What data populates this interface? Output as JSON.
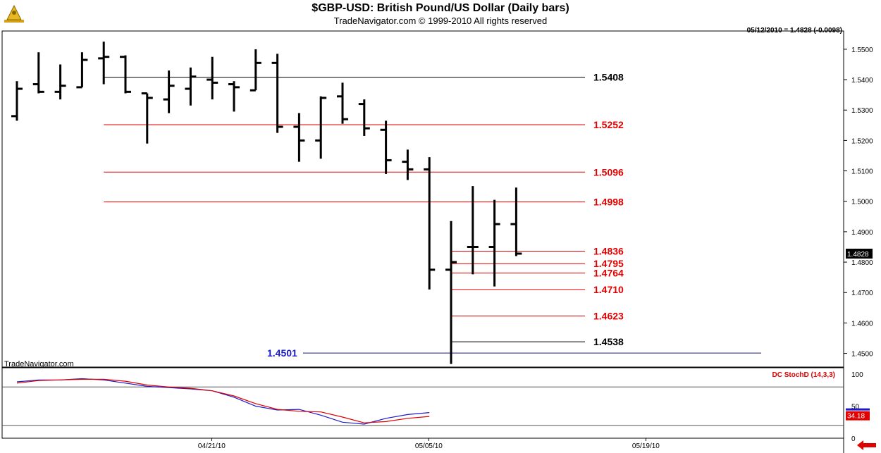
{
  "header": {
    "title": "$GBP-USD:  British Pound/US Dollar  (Daily bars)",
    "subtitle": "TradeNavigator.com © 1999-2010 All rights reserved",
    "readout": "05/12/2010 = 1.4828 (-0.0098)",
    "watermark": "TradeNavigator.com"
  },
  "colors": {
    "red": "#e00000",
    "blue": "#1a1acc",
    "black": "#000000",
    "green": "#00b000"
  },
  "chart_data": {
    "type": "ohlc",
    "title": "$GBP-USD:  British Pound/US Dollar  (Daily bars)",
    "price_ylim": [
      1.4455,
      1.556
    ],
    "price_ticks": [
      "1.5500",
      "1.5400",
      "1.5300",
      "1.5200",
      "1.5100",
      "1.5000",
      "1.4900",
      "1.4800",
      "1.4700",
      "1.4600",
      "1.4500"
    ],
    "last_price_label": "1.4828",
    "x_tick_labels": [
      {
        "label": "04/21/10",
        "bar": 8
      },
      {
        "label": "05/05/10",
        "bar": 18
      },
      {
        "label": "05/19/10",
        "bar": 28
      }
    ],
    "bars": [
      {
        "o": 1.528,
        "h": 1.5395,
        "l": 1.5265,
        "c": 1.537
      },
      {
        "o": 1.5385,
        "h": 1.549,
        "l": 1.5355,
        "c": 1.536
      },
      {
        "o": 1.536,
        "h": 1.545,
        "l": 1.5335,
        "c": 1.538
      },
      {
        "o": 1.5375,
        "h": 1.549,
        "l": 1.5375,
        "c": 1.5465
      },
      {
        "o": 1.547,
        "h": 1.5525,
        "l": 1.5385,
        "c": 1.5475
      },
      {
        "o": 1.5475,
        "h": 1.548,
        "l": 1.5355,
        "c": 1.536
      },
      {
        "o": 1.5355,
        "h": 1.5355,
        "l": 1.519,
        "c": 1.534
      },
      {
        "o": 1.5335,
        "h": 1.543,
        "l": 1.529,
        "c": 1.538
      },
      {
        "o": 1.537,
        "h": 1.544,
        "l": 1.5315,
        "c": 1.541
      },
      {
        "o": 1.54,
        "h": 1.5475,
        "l": 1.5335,
        "c": 1.539
      },
      {
        "o": 1.5385,
        "h": 1.5395,
        "l": 1.5295,
        "c": 1.5375
      },
      {
        "o": 1.5365,
        "h": 1.55,
        "l": 1.5365,
        "c": 1.5455
      },
      {
        "o": 1.5455,
        "h": 1.5485,
        "l": 1.5225,
        "c": 1.5245
      },
      {
        "o": 1.5245,
        "h": 1.529,
        "l": 1.513,
        "c": 1.52
      },
      {
        "o": 1.52,
        "h": 1.5345,
        "l": 1.514,
        "c": 1.534
      },
      {
        "o": 1.5345,
        "h": 1.539,
        "l": 1.5255,
        "c": 1.527
      },
      {
        "o": 1.532,
        "h": 1.5335,
        "l": 1.5215,
        "c": 1.524
      },
      {
        "o": 1.5235,
        "h": 1.5265,
        "l": 1.509,
        "c": 1.5135
      },
      {
        "o": 1.513,
        "h": 1.517,
        "l": 1.507,
        "c": 1.5105
      },
      {
        "o": 1.5105,
        "h": 1.5145,
        "l": 1.471,
        "c": 1.4775
      },
      {
        "o": 1.4775,
        "h": 1.4935,
        "l": 1.4465,
        "c": 1.48
      },
      {
        "o": 1.485,
        "h": 1.505,
        "l": 1.476,
        "c": 1.485
      },
      {
        "o": 1.485,
        "h": 1.5005,
        "l": 1.472,
        "c": 1.4925
      },
      {
        "o": 1.4925,
        "h": 1.5045,
        "l": 1.482,
        "c": 1.4828
      }
    ],
    "levels": [
      {
        "label": "1.5408",
        "value": 1.5408,
        "color": "black",
        "from_bar": 4
      },
      {
        "label": "1.5252",
        "value": 1.5252,
        "color": "red",
        "from_bar": 4
      },
      {
        "label": "1.5096",
        "value": 1.5096,
        "color": "red",
        "from_bar": 4
      },
      {
        "label": "1.4998",
        "value": 1.4998,
        "color": "red",
        "from_bar": 4
      },
      {
        "label": "1.4836",
        "value": 1.4836,
        "color": "red",
        "from_bar": 20
      },
      {
        "label": "1.4795",
        "value": 1.4795,
        "color": "red",
        "from_bar": 20
      },
      {
        "label": "1.4764",
        "value": 1.4764,
        "color": "red",
        "from_bar": 20
      },
      {
        "label": "1.4710",
        "value": 1.471,
        "color": "red",
        "from_bar": 20
      },
      {
        "label": "1.4623",
        "value": 1.4623,
        "color": "red",
        "from_bar": 20
      },
      {
        "label": "1.4538",
        "value": 1.4538,
        "color": "black",
        "from_bar": 20
      }
    ],
    "support": {
      "label": "1.4501",
      "value": 1.4501,
      "color": "blue"
    },
    "indicator": {
      "name": "DC StochD (14,3,3)",
      "ylim": [
        0,
        110
      ],
      "ticks": [
        "100",
        "50",
        "0"
      ],
      "reference_lines": [
        80,
        20
      ],
      "last_value_label": "34.18",
      "series": [
        {
          "color": "blue",
          "values": [
            88,
            91,
            91,
            93,
            91,
            86,
            81,
            79,
            77,
            74,
            64,
            50,
            44,
            45,
            36,
            25,
            22,
            31,
            37,
            40
          ]
        },
        {
          "color": "red",
          "values": [
            86,
            90,
            91,
            92,
            92,
            89,
            83,
            80,
            78,
            74,
            66,
            54,
            45,
            42,
            41,
            33,
            24,
            26,
            31,
            34
          ]
        }
      ]
    }
  }
}
